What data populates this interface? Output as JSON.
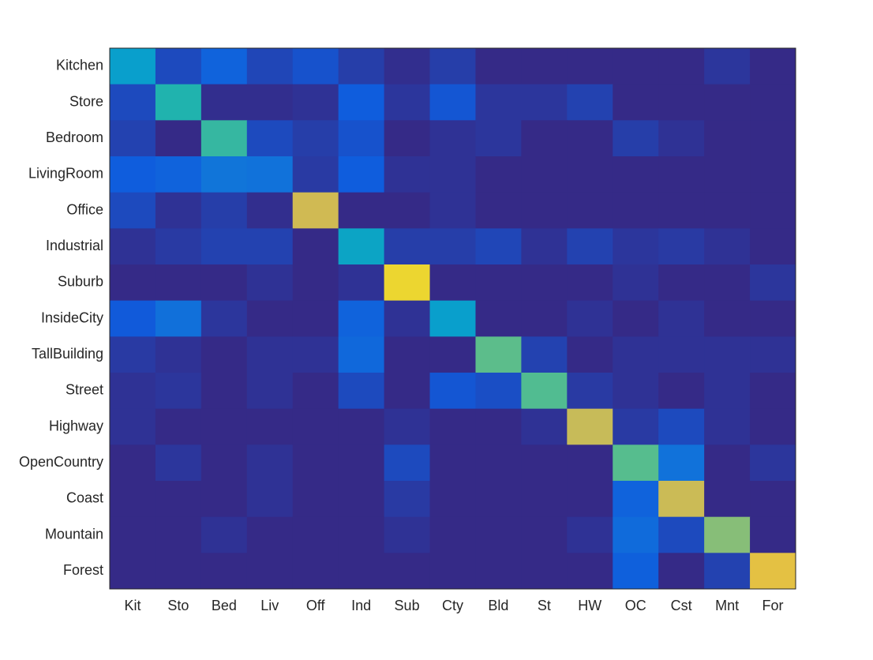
{
  "chart_data": {
    "type": "heatmap",
    "x_categories": [
      "Kit",
      "Sto",
      "Bed",
      "Liv",
      "Off",
      "Ind",
      "Sub",
      "Cty",
      "Bld",
      "St",
      "HW",
      "OC",
      "Cst",
      "Mnt",
      "For"
    ],
    "y_categories": [
      "Kitchen",
      "Store",
      "Bedroom",
      "LivingRoom",
      "Office",
      "Industrial",
      "Suburb",
      "InsideCity",
      "TallBuilding",
      "Street",
      "Highway",
      "OpenCountry",
      "Coast",
      "Mountain",
      "Forest"
    ],
    "values": [
      [
        0.39,
        0.08,
        0.15,
        0.07,
        0.1,
        0.05,
        0.01,
        0.05,
        0,
        0,
        0,
        0,
        0,
        0.03,
        0
      ],
      [
        0.08,
        0.52,
        0.01,
        0.01,
        0.02,
        0.13,
        0.03,
        0.11,
        0.03,
        0.03,
        0.06,
        0,
        0,
        0,
        0
      ],
      [
        0.06,
        0,
        0.56,
        0.08,
        0.05,
        0.1,
        0,
        0.02,
        0.03,
        0,
        0,
        0.05,
        0.02,
        0,
        0
      ],
      [
        0.13,
        0.15,
        0.22,
        0.21,
        0.04,
        0.13,
        0.02,
        0.02,
        0,
        0,
        0,
        0,
        0,
        0,
        0
      ],
      [
        0.08,
        0.02,
        0.05,
        0.01,
        0.84,
        0,
        0,
        0.02,
        0,
        0,
        0,
        0,
        0,
        0,
        0
      ],
      [
        0.02,
        0.04,
        0.06,
        0.06,
        0,
        0.42,
        0.05,
        0.05,
        0.07,
        0.02,
        0.06,
        0.03,
        0.04,
        0.02,
        0
      ],
      [
        0,
        0,
        0,
        0.02,
        0,
        0.02,
        0.93,
        0,
        0,
        0,
        0,
        0.02,
        0,
        0,
        0.03
      ],
      [
        0.12,
        0.2,
        0.03,
        0,
        0,
        0.15,
        0.02,
        0.39,
        0,
        0,
        0.02,
        0,
        0.02,
        0,
        0
      ],
      [
        0.04,
        0.02,
        0,
        0.02,
        0.02,
        0.17,
        0,
        0,
        0.63,
        0.06,
        0,
        0.02,
        0.02,
        0.02,
        0.02
      ],
      [
        0.02,
        0.03,
        0,
        0.02,
        0,
        0.08,
        0,
        0.11,
        0.09,
        0.61,
        0.04,
        0.02,
        0,
        0.02,
        0
      ],
      [
        0.02,
        0,
        0,
        0,
        0,
        0,
        0.02,
        0,
        0,
        0.02,
        0.82,
        0.04,
        0.08,
        0.02,
        0
      ],
      [
        0,
        0.03,
        0,
        0.02,
        0,
        0,
        0.08,
        0,
        0,
        0,
        0,
        0.62,
        0.21,
        0,
        0.03
      ],
      [
        0,
        0,
        0,
        0.02,
        0,
        0,
        0.04,
        0,
        0,
        0,
        0,
        0.15,
        0.83,
        0,
        0
      ],
      [
        0,
        0,
        0.02,
        0,
        0,
        0,
        0.02,
        0,
        0,
        0,
        0.02,
        0.18,
        0.08,
        0.7,
        0
      ],
      [
        0,
        0,
        0,
        0,
        0,
        0,
        0,
        0,
        0,
        0,
        0,
        0.14,
        0,
        0.06,
        0.89
      ]
    ]
  }
}
